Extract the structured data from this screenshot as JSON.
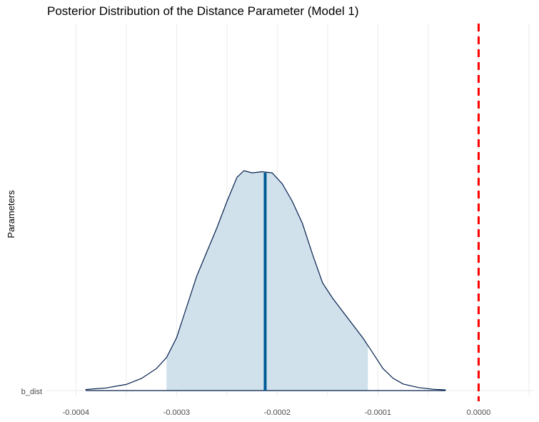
{
  "chart_data": {
    "type": "area",
    "title": "Posterior Distribution of the Distance Parameter (Model 1)",
    "ylabel": "Parameters",
    "xlabel": "",
    "parameter": "b_dist",
    "xlim": [
      -0.00043,
      5.5e-05
    ],
    "x_ticks": [
      -0.0004,
      -0.0003,
      -0.0002,
      -0.0001,
      0.0
    ],
    "x_tick_labels": [
      "-0.0004",
      "-0.0003",
      "-0.0002",
      "-0.0001",
      "0.0000"
    ],
    "density_x": [
      -0.00039,
      -0.00037,
      -0.00035,
      -0.000335,
      -0.00032,
      -0.00031,
      -0.0003,
      -0.00029,
      -0.00028,
      -0.00027,
      -0.00026,
      -0.00025,
      -0.00024,
      -0.000233,
      -0.000225,
      -0.000215,
      -0.000205,
      -0.000195,
      -0.000185,
      -0.000175,
      -0.000165,
      -0.000155,
      -0.000145,
      -0.000135,
      -0.000125,
      -0.000115,
      -0.000105,
      -9.5e-05,
      -8.5e-05,
      -7.5e-05,
      -6e-05,
      -4.5e-05,
      -3.3e-05
    ],
    "density_y": [
      0.005,
      0.012,
      0.028,
      0.055,
      0.1,
      0.15,
      0.24,
      0.38,
      0.52,
      0.63,
      0.74,
      0.86,
      0.97,
      1.0,
      0.99,
      0.995,
      0.99,
      0.94,
      0.86,
      0.76,
      0.62,
      0.49,
      0.42,
      0.36,
      0.3,
      0.24,
      0.17,
      0.1,
      0.056,
      0.03,
      0.014,
      0.006,
      0.003
    ],
    "interval": [
      -0.00031,
      -0.00011
    ],
    "point_estimate": -0.000212,
    "reference_line": 0.0,
    "colors": {
      "density_fill": "#d1e1ec",
      "density_line": "#011f4b",
      "point_line": "#005b96",
      "reference_line": "#ff0000",
      "grid": "#ebebeb"
    }
  }
}
